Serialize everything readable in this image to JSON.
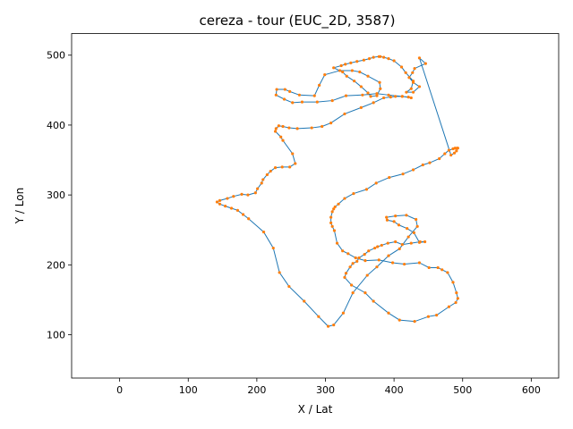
{
  "chart_data": {
    "type": "line",
    "title": "cereza - tour (EUC_2D, 3587)",
    "xlabel": "X / Lat",
    "ylabel": "Y / Lon",
    "xlim": [
      -70,
      640
    ],
    "ylim": [
      38,
      531
    ],
    "xticks": [
      0,
      100,
      200,
      300,
      400,
      500,
      600
    ],
    "yticks": [
      100,
      200,
      300,
      400,
      500
    ],
    "grid": false,
    "series": [
      {
        "color": "#1f77b4",
        "marker_color": "#ff7f0e",
        "x": [
          437,
          446,
          430,
          427,
          422,
          428,
          437,
          428,
          418,
          425,
          428,
          417,
          411,
          400,
          392,
          385,
          380,
          378,
          370,
          364,
          356,
          346,
          337,
          329,
          323,
          312,
          325,
          331,
          342,
          352,
          362,
          366,
          375,
          380,
          379,
          362,
          350,
          339,
          321,
          299,
          291,
          284,
          262,
          248,
          241,
          229,
          228,
          240,
          252,
          266,
          288,
          310,
          330,
          354,
          375,
          392,
          412,
          425,
          421,
          412,
          402,
          395,
          385,
          370,
          352,
          328,
          308,
          295,
          280,
          259,
          247,
          238,
          232,
          228,
          227,
          235,
          238,
          252,
          256,
          248,
          237,
          227,
          220,
          215,
          209,
          207,
          201,
          198,
          187,
          178,
          166,
          157,
          146,
          142,
          146,
          154,
          163,
          172,
          180,
          188,
          210,
          224,
          233,
          247,
          269,
          290,
          304,
          312,
          326,
          340,
          361,
          375,
          392,
          408,
          421,
          434,
          432,
          418,
          402,
          389,
          390,
          400,
          407,
          419,
          429,
          437,
          445,
          438,
          425,
          412,
          402,
          391,
          382,
          376,
          372,
          363,
          357,
          349,
          346,
          340,
          336,
          330,
          328,
          338,
          358,
          370,
          392,
          408,
          430,
          450,
          462,
          480,
          490,
          493,
          491,
          486,
          478,
          470,
          464,
          451,
          437,
          415,
          398,
          378,
          358,
          344,
          333,
          325,
          317,
          313,
          310,
          308,
          308,
          310,
          312,
          314,
          319,
          328,
          341,
          360,
          374,
          393,
          413,
          428,
          442,
          452,
          466,
          474,
          480,
          486,
          489,
          492,
          493,
          491,
          488,
          483
        ],
        "y": [
          496,
          488,
          481,
          475,
          468,
          461,
          455,
          447,
          447,
          452,
          463,
          475,
          483,
          492,
          495,
          497,
          498,
          498,
          497,
          495,
          493,
          491,
          489,
          487,
          485,
          482,
          476,
          470,
          463,
          455,
          446,
          441,
          442,
          452,
          461,
          470,
          476,
          478,
          478,
          472,
          457,
          442,
          443,
          448,
          451,
          451,
          443,
          437,
          432,
          433,
          433,
          435,
          442,
          443,
          445,
          443,
          441,
          439,
          440,
          441,
          441,
          440,
          439,
          432,
          425,
          416,
          403,
          398,
          396,
          395,
          396,
          398,
          399,
          395,
          391,
          383,
          378,
          359,
          345,
          340,
          340,
          339,
          334,
          329,
          322,
          317,
          309,
          303,
          300,
          301,
          298,
          295,
          292,
          290,
          287,
          284,
          281,
          278,
          272,
          266,
          247,
          224,
          189,
          169,
          148,
          126,
          112,
          114,
          131,
          160,
          185,
          197,
          213,
          223,
          240,
          255,
          265,
          271,
          270,
          268,
          264,
          262,
          257,
          252,
          246,
          232,
          233,
          233,
          231,
          229,
          233,
          231,
          228,
          226,
          224,
          220,
          215,
          210,
          205,
          202,
          197,
          188,
          182,
          171,
          160,
          148,
          131,
          121,
          119,
          126,
          128,
          140,
          146,
          152,
          160,
          175,
          189,
          193,
          196,
          196,
          203,
          201,
          203,
          207,
          206,
          210,
          216,
          220,
          231,
          249,
          255,
          260,
          268,
          276,
          280,
          283,
          287,
          295,
          302,
          308,
          317,
          325,
          330,
          336,
          343,
          346,
          352,
          359,
          364,
          366,
          367,
          367,
          367,
          363,
          360,
          357
        ]
      }
    ]
  }
}
